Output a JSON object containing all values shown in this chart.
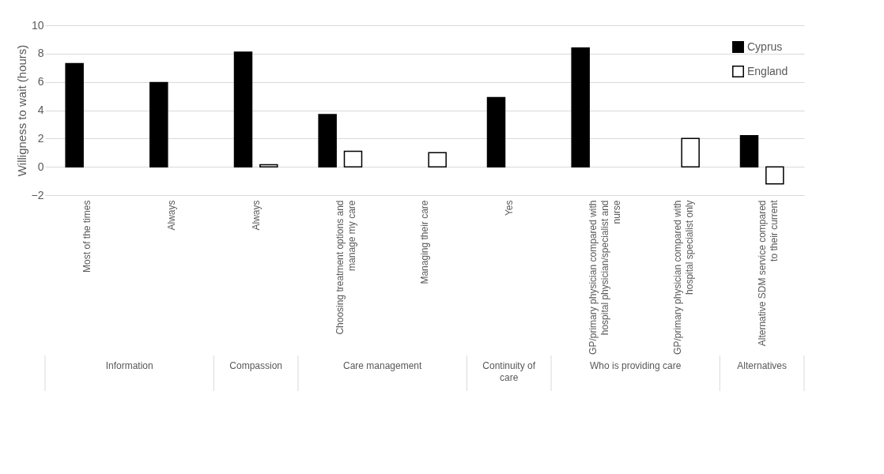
{
  "chart_data": {
    "type": "bar",
    "ylabel": "Willigness to wait (hours)",
    "categories": [
      "Most of the times",
      "Always",
      "Always",
      "Choosing treatment options and manage my care",
      "Managing their care",
      "Yes",
      "GP/primary physician compared with hospital physician/specialist and nurse",
      "GP/primary physician compared with hospital specialist only",
      "Alternative SDM service compared to their current"
    ],
    "series": [
      {
        "name": "Cyprus",
        "color": "#000000",
        "values": [
          7.3,
          5.95,
          8.1,
          3.7,
          null,
          4.9,
          8.4,
          null,
          2.2
        ]
      },
      {
        "name": "England",
        "color": "#ffffff",
        "values": [
          null,
          null,
          0.15,
          1.1,
          1.0,
          null,
          null,
          2.0,
          -1.2
        ]
      }
    ],
    "ylim": [
      -2,
      10
    ],
    "yticks": [
      -2,
      0,
      2,
      4,
      6,
      8,
      10
    ],
    "grid": "y",
    "legend": "top right",
    "annotations": [
      "Information",
      "Compassion",
      "Care management",
      "Continuity of care",
      "Who is providing care",
      "Alternatives"
    ]
  }
}
